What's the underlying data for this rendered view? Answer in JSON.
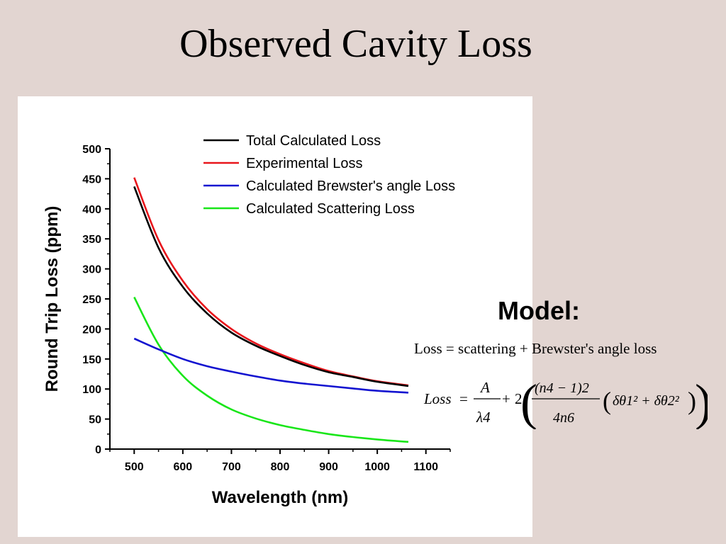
{
  "slide": {
    "title": "Observed Cavity Loss"
  },
  "model": {
    "title": "Model:",
    "equation_text": "Loss = scattering + Brewster's angle loss",
    "formula": {
      "lhs": "Loss",
      "term1_numerator": "A",
      "term1_denominator": "λ4",
      "coefficient": "2",
      "term2_numerator": "(n4 − 1)2",
      "term2_denominator": "4n6",
      "angle_terms": "δθ1² + δθ2²"
    }
  },
  "colors": {
    "total": "#000000",
    "experimental": "#e8161c",
    "brewster": "#1313d0",
    "scattering": "#19e619"
  },
  "chart_data": {
    "type": "line",
    "xlabel": "Wavelength (nm)",
    "ylabel": "Round Trip Loss (ppm)",
    "xlim": [
      450,
      1150
    ],
    "ylim": [
      0,
      500
    ],
    "xticks": [
      500,
      600,
      700,
      800,
      900,
      1000,
      1100
    ],
    "yticks": [
      0,
      50,
      100,
      150,
      200,
      250,
      300,
      350,
      400,
      450,
      500
    ],
    "legend_position": "top-right",
    "grid": false,
    "x": [
      500,
      550,
      600,
      650,
      700,
      750,
      800,
      850,
      900,
      950,
      1000,
      1064
    ],
    "series": [
      {
        "name": "Total Calculated Loss",
        "color_key": "total",
        "values": [
          437,
          335,
          270,
          226,
          194,
          172,
          155,
          140,
          128,
          120,
          112,
          105
        ]
      },
      {
        "name": "Experimental Loss",
        "color_key": "experimental",
        "values": [
          452,
          348,
          280,
          233,
          200,
          176,
          158,
          143,
          130,
          121,
          113,
          106
        ]
      },
      {
        "name": "Calculated Brewster's angle Loss",
        "color_key": "brewster",
        "values": [
          184,
          166,
          150,
          138,
          129,
          121,
          114,
          109,
          105,
          101,
          97,
          94
        ]
      },
      {
        "name": "Calculated Scattering Loss",
        "color_key": "scattering",
        "values": [
          253,
          174,
          122,
          89,
          66,
          51,
          40,
          32,
          25,
          20,
          16,
          12
        ]
      }
    ]
  }
}
